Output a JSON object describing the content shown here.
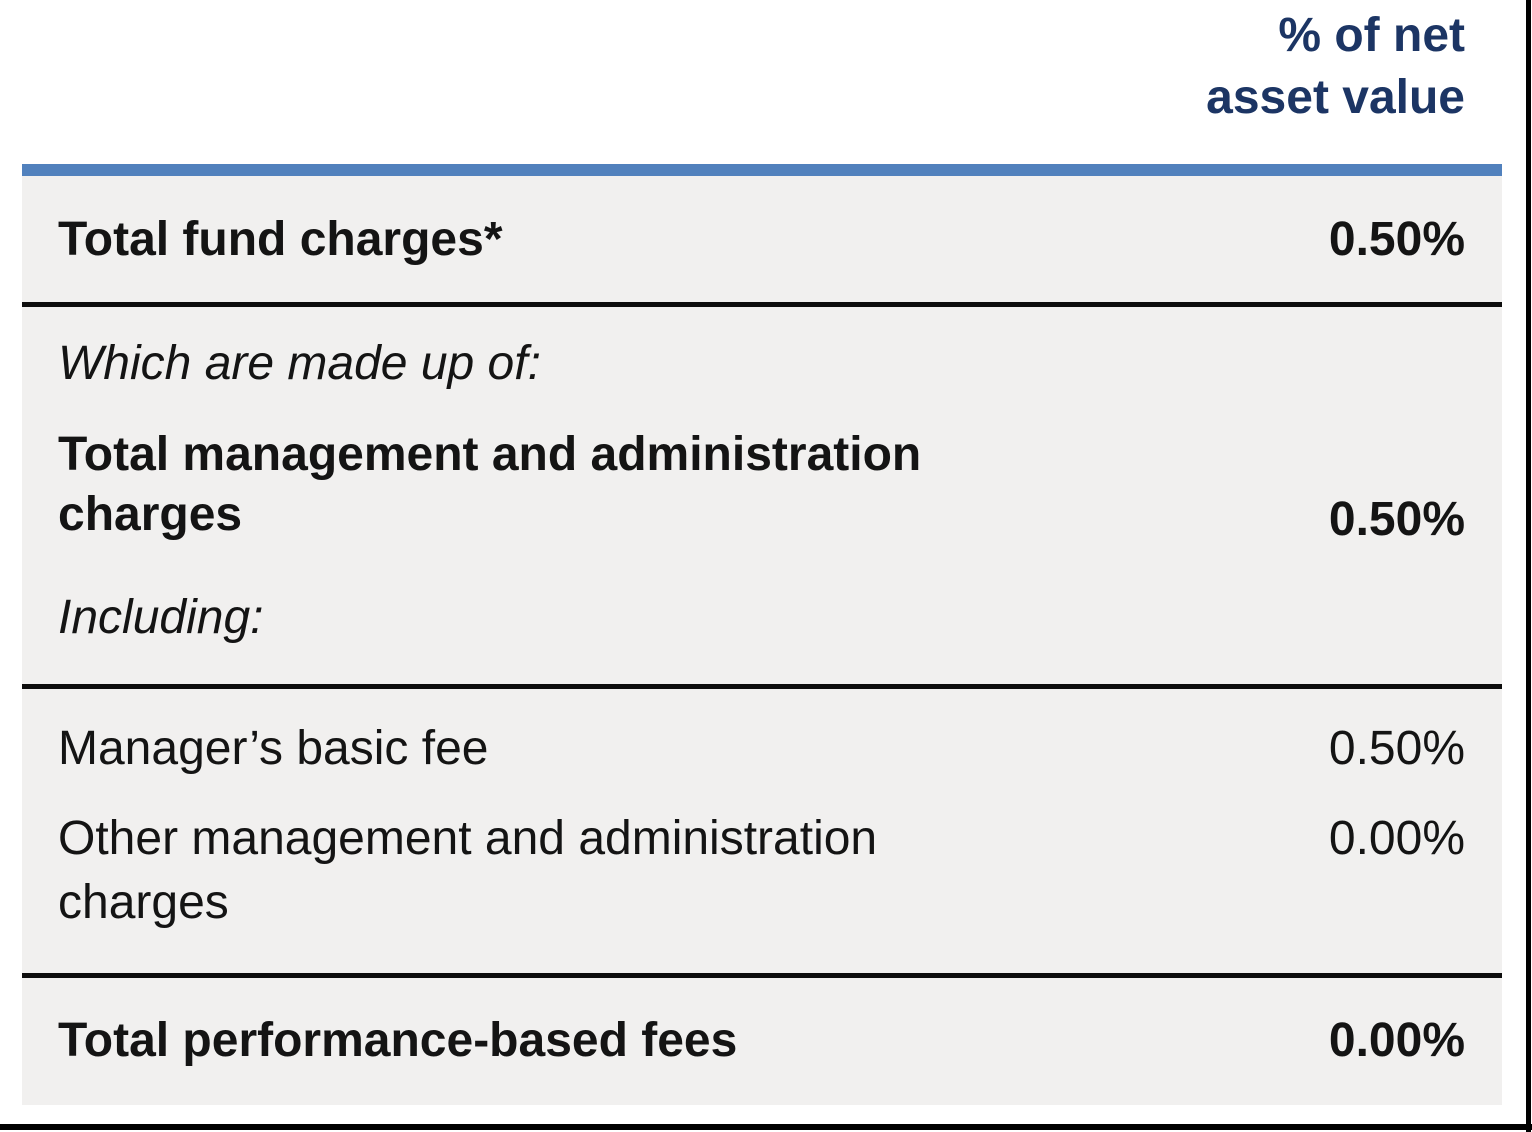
{
  "colors": {
    "header_navy": "#1c3564",
    "accent_bar_blue": "#5181bd",
    "table_background": "#f1f0ef"
  },
  "column_header": {
    "line1": "% of net",
    "line2": "asset value"
  },
  "sections": [
    {
      "label": "Total fund charges*",
      "value": "0.50%"
    },
    {
      "intro": "Which are made up of:",
      "label": "Total management and administration charges",
      "value": "0.50%",
      "outro": "Including:"
    },
    {
      "items": [
        {
          "label": "Manager’s basic fee",
          "value": "0.50%"
        },
        {
          "label": "Other management and administration charges",
          "value": "0.00%"
        }
      ]
    },
    {
      "label": "Total performance-based fees",
      "value": "0.00%"
    }
  ]
}
